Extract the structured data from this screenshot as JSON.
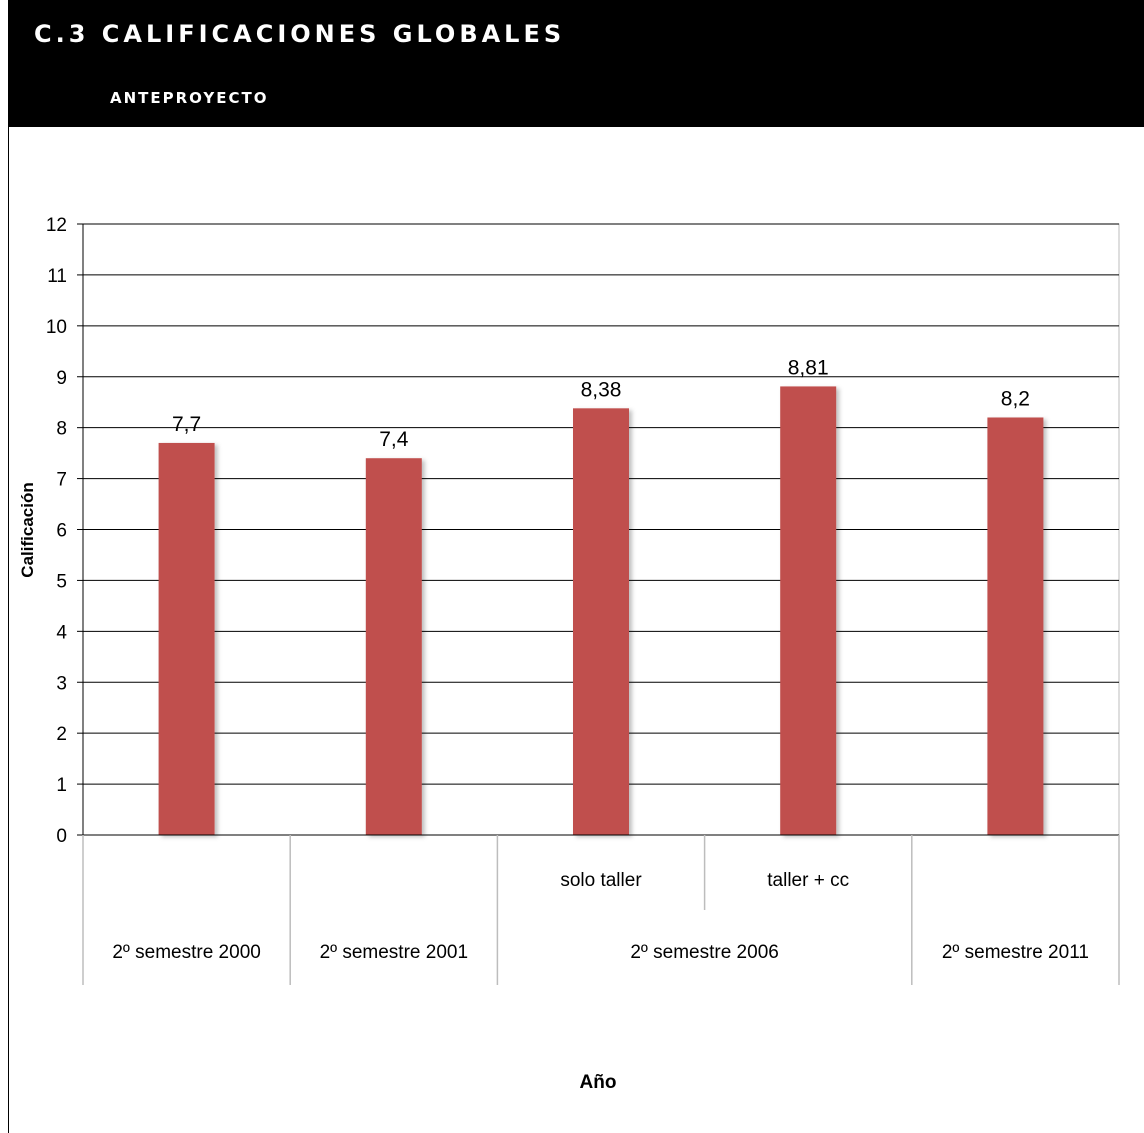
{
  "header": {
    "title": "C.3 CALIFICACIONES GLOBALES",
    "subtitle": "ANTEPROYECTO"
  },
  "chart_data": {
    "type": "bar",
    "categories": [
      "2º semestre 2000 / -",
      "2º semestre 2001 / -",
      "2º semestre 2006 / solo taller",
      "2º semestre 2006 / taller + cc",
      "2º semestre 2011 / -"
    ],
    "values": [
      7.7,
      7.4,
      8.38,
      8.81,
      8.2
    ],
    "data_labels": [
      "7,7",
      "7,4",
      "8,38",
      "8,81",
      "8,2"
    ],
    "group_labels": [
      "2º semestre 2000",
      "2º semestre 2001",
      "2º semestre 2006",
      "2º semestre 2011"
    ],
    "sub_labels": [
      "solo taller",
      "taller + cc"
    ],
    "xlabel": "Año",
    "ylabel": "Calificación",
    "ylim": [
      0,
      12
    ],
    "yticks": [
      0,
      1,
      2,
      3,
      4,
      5,
      6,
      7,
      8,
      9,
      10,
      11,
      12
    ],
    "grid": true,
    "bar_color": "#c0504d"
  }
}
